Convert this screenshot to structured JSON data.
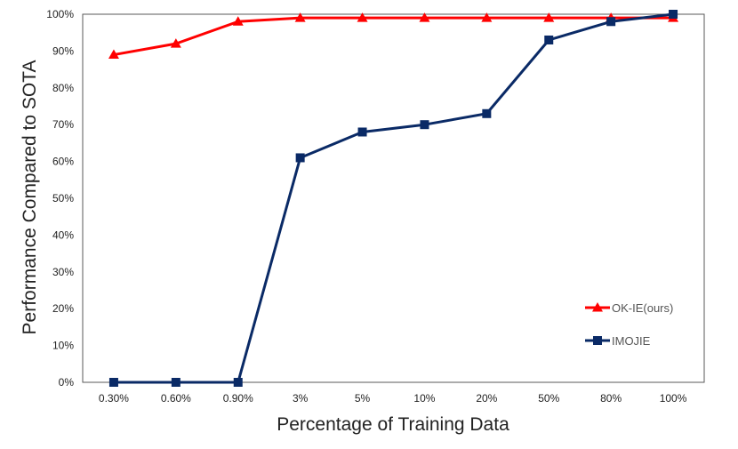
{
  "chart_data": {
    "type": "line",
    "title": "",
    "xlabel": "Percentage of Training Data",
    "ylabel": "Performance Compared to SOTA",
    "categories": [
      "0.30%",
      "0.60%",
      "0.90%",
      "3%",
      "5%",
      "10%",
      "20%",
      "50%",
      "80%",
      "100%"
    ],
    "yticks": [
      "0%",
      "10%",
      "20%",
      "30%",
      "40%",
      "50%",
      "60%",
      "70%",
      "80%",
      "90%",
      "100%"
    ],
    "ylim": [
      0,
      100
    ],
    "grid": false,
    "legend_position": "right",
    "series": [
      {
        "name": "OK-IE(ours)",
        "color": "#ff0000",
        "marker": "triangle",
        "values": [
          89,
          92,
          98,
          99,
          99,
          99,
          99,
          99,
          99,
          99
        ]
      },
      {
        "name": "IMOJIE",
        "color": "#0a2a66",
        "marker": "square",
        "values": [
          0,
          0,
          0,
          61,
          68,
          70,
          73,
          93,
          98,
          100
        ]
      }
    ]
  }
}
